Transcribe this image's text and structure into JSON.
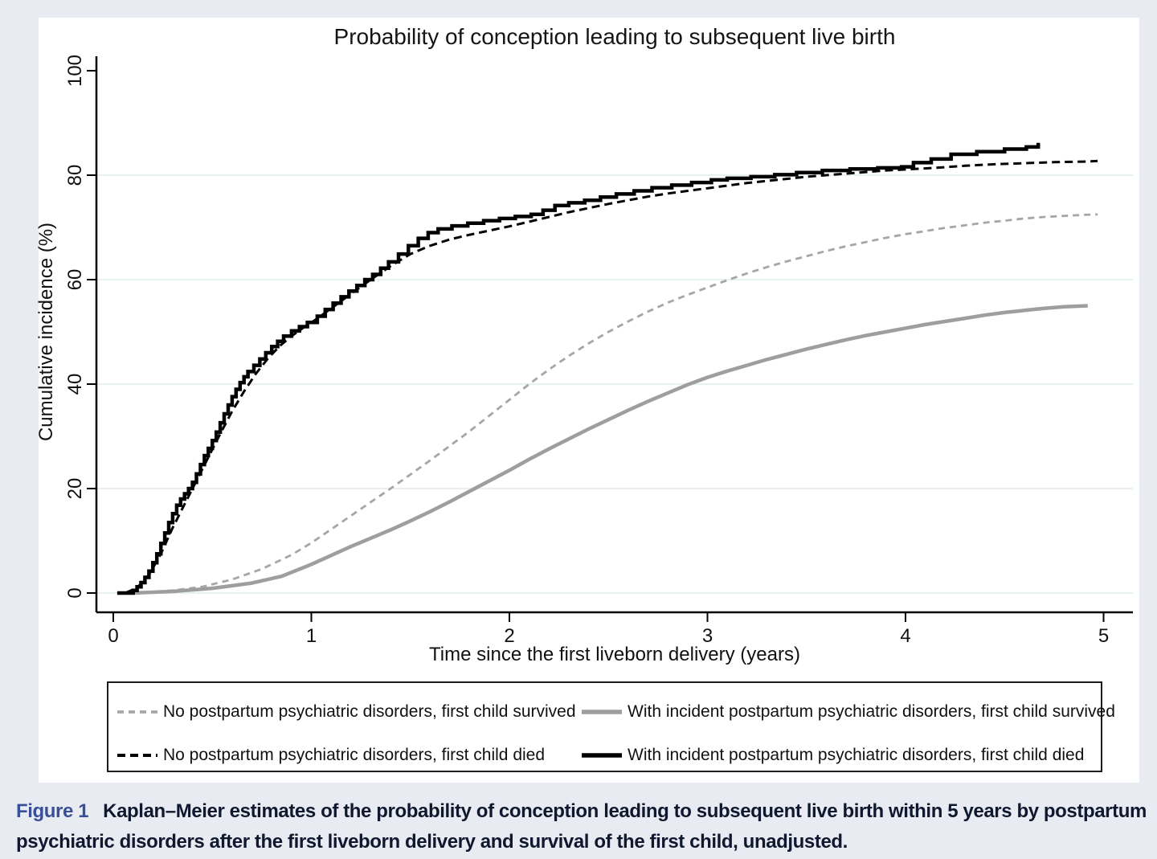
{
  "page": {
    "background": "#e8ecf2",
    "panel": "#ffffff"
  },
  "colors": {
    "axis": "#000000",
    "gridline": "#e9f1ee",
    "gray_series": "#9e9e9e",
    "gray_dashed_series": "#a6a6a6",
    "black_series": "#000000",
    "caption_label_blue": "#3a4f9a",
    "caption_text": "#10182f"
  },
  "chart_data": {
    "type": "line",
    "title": "Probability of conception leading to subsequent live birth",
    "xlabel": "Time since the first liveborn delivery (years)",
    "ylabel": "Cumulative incidence (%)",
    "xlim": [
      0,
      5
    ],
    "ylim": [
      0,
      100
    ],
    "xticks": [
      0,
      1,
      2,
      3,
      4,
      5
    ],
    "yticks": [
      0,
      20,
      40,
      60,
      80,
      100
    ],
    "gridlines_y": [
      0,
      20,
      40,
      60,
      80
    ],
    "grid": "horizontal-only",
    "legend_position": "boxed, below plot, 2 columns x 2 rows",
    "series": [
      {
        "name": "No postpartum psychiatric disorders, first child survived",
        "color": "#a6a6a6",
        "style": "dashed",
        "dash": "8 6",
        "line_width": 2.8,
        "interpolation": "linear",
        "points": [
          [
            0.1,
            0
          ],
          [
            0.3,
            0.5
          ],
          [
            0.45,
            1.2
          ],
          [
            0.6,
            2.6
          ],
          [
            0.75,
            4.6
          ],
          [
            0.9,
            7.3
          ],
          [
            1.0,
            9.6
          ],
          [
            1.1,
            12.2
          ],
          [
            1.2,
            14.8
          ],
          [
            1.3,
            17.4
          ],
          [
            1.4,
            20
          ],
          [
            1.5,
            22.7
          ],
          [
            1.6,
            25.4
          ],
          [
            1.7,
            28.2
          ],
          [
            1.8,
            31
          ],
          [
            1.9,
            34
          ],
          [
            2.0,
            37
          ],
          [
            2.1,
            40
          ],
          [
            2.2,
            42.8
          ],
          [
            2.3,
            45.4
          ],
          [
            2.4,
            47.8
          ],
          [
            2.5,
            50
          ],
          [
            2.6,
            52
          ],
          [
            2.7,
            53.9
          ],
          [
            2.8,
            55.6
          ],
          [
            2.9,
            57.1
          ],
          [
            3.0,
            58.5
          ],
          [
            3.1,
            59.9
          ],
          [
            3.2,
            61.2
          ],
          [
            3.3,
            62.4
          ],
          [
            3.4,
            63.5
          ],
          [
            3.5,
            64.5
          ],
          [
            3.6,
            65.5
          ],
          [
            3.7,
            66.4
          ],
          [
            3.8,
            67.2
          ],
          [
            3.9,
            68
          ],
          [
            4.0,
            68.7
          ],
          [
            4.1,
            69.3
          ],
          [
            4.2,
            69.9
          ],
          [
            4.3,
            70.4
          ],
          [
            4.4,
            70.9
          ],
          [
            4.5,
            71.3
          ],
          [
            4.6,
            71.7
          ],
          [
            4.7,
            72
          ],
          [
            4.8,
            72.2
          ],
          [
            4.9,
            72.4
          ],
          [
            4.97,
            72.5
          ]
        ]
      },
      {
        "name": "With incident postpartum psychiatric disorders, first child survived",
        "color": "#9e9e9e",
        "style": "solid",
        "dash": null,
        "line_width": 4.5,
        "interpolation": "linear",
        "points": [
          [
            0.1,
            0
          ],
          [
            0.3,
            0.3
          ],
          [
            0.5,
            0.9
          ],
          [
            0.7,
            1.9
          ],
          [
            0.85,
            3.2
          ],
          [
            1.0,
            5.5
          ],
          [
            1.1,
            7.2
          ],
          [
            1.2,
            8.9
          ],
          [
            1.3,
            10.5
          ],
          [
            1.4,
            12.1
          ],
          [
            1.5,
            13.8
          ],
          [
            1.6,
            15.6
          ],
          [
            1.7,
            17.5
          ],
          [
            1.8,
            19.5
          ],
          [
            1.9,
            21.5
          ],
          [
            2.0,
            23.5
          ],
          [
            2.1,
            25.6
          ],
          [
            2.2,
            27.6
          ],
          [
            2.3,
            29.5
          ],
          [
            2.4,
            31.4
          ],
          [
            2.5,
            33.2
          ],
          [
            2.6,
            35
          ],
          [
            2.7,
            36.7
          ],
          [
            2.8,
            38.3
          ],
          [
            2.9,
            39.9
          ],
          [
            3.0,
            41.3
          ],
          [
            3.1,
            42.5
          ],
          [
            3.2,
            43.6
          ],
          [
            3.3,
            44.7
          ],
          [
            3.4,
            45.7
          ],
          [
            3.5,
            46.7
          ],
          [
            3.6,
            47.6
          ],
          [
            3.7,
            48.5
          ],
          [
            3.8,
            49.3
          ],
          [
            3.9,
            50
          ],
          [
            4.0,
            50.7
          ],
          [
            4.1,
            51.4
          ],
          [
            4.2,
            52
          ],
          [
            4.3,
            52.6
          ],
          [
            4.4,
            53.2
          ],
          [
            4.5,
            53.7
          ],
          [
            4.6,
            54.1
          ],
          [
            4.7,
            54.5
          ],
          [
            4.8,
            54.8
          ],
          [
            4.92,
            55
          ]
        ]
      },
      {
        "name": "No postpartum psychiatric disorders, first child died",
        "color": "#000000",
        "style": "dashed",
        "dash": "10 6",
        "line_width": 3,
        "interpolation": "linear",
        "points": [
          [
            0.06,
            0
          ],
          [
            0.12,
            1
          ],
          [
            0.18,
            3.5
          ],
          [
            0.24,
            7.5
          ],
          [
            0.3,
            12.5
          ],
          [
            0.36,
            17
          ],
          [
            0.42,
            21.5
          ],
          [
            0.48,
            26
          ],
          [
            0.54,
            30.5
          ],
          [
            0.6,
            34.8
          ],
          [
            0.66,
            38.6
          ],
          [
            0.72,
            42
          ],
          [
            0.78,
            44.9
          ],
          [
            0.84,
            47.3
          ],
          [
            0.9,
            49.2
          ],
          [
            0.96,
            50.8
          ],
          [
            1.02,
            52.3
          ],
          [
            1.1,
            54.5
          ],
          [
            1.2,
            57.3
          ],
          [
            1.3,
            60
          ],
          [
            1.4,
            62.6
          ],
          [
            1.5,
            64.9
          ],
          [
            1.6,
            66.5
          ],
          [
            1.7,
            67.7
          ],
          [
            1.8,
            68.6
          ],
          [
            1.9,
            69.4
          ],
          [
            2.0,
            70.2
          ],
          [
            2.1,
            71.1
          ],
          [
            2.2,
            72
          ],
          [
            2.3,
            72.9
          ],
          [
            2.4,
            73.7
          ],
          [
            2.5,
            74.5
          ],
          [
            2.6,
            75.2
          ],
          [
            2.7,
            75.9
          ],
          [
            2.8,
            76.5
          ],
          [
            2.9,
            77
          ],
          [
            3.0,
            77.5
          ],
          [
            3.1,
            78
          ],
          [
            3.2,
            78.5
          ],
          [
            3.3,
            78.9
          ],
          [
            3.4,
            79.3
          ],
          [
            3.5,
            79.7
          ],
          [
            3.6,
            80
          ],
          [
            3.7,
            80.3
          ],
          [
            3.8,
            80.6
          ],
          [
            3.9,
            80.9
          ],
          [
            4.0,
            81.1
          ],
          [
            4.15,
            81.4
          ],
          [
            4.3,
            81.8
          ],
          [
            4.45,
            82.1
          ],
          [
            4.6,
            82.3
          ],
          [
            4.75,
            82.5
          ],
          [
            4.9,
            82.6
          ],
          [
            4.97,
            82.7
          ]
        ]
      },
      {
        "name": "With incident postpartum psychiatric disorders, first child died",
        "color": "#000000",
        "style": "solid",
        "dash": null,
        "line_width": 4.5,
        "interpolation": "step",
        "points": [
          [
            0.02,
            0
          ],
          [
            0.1,
            0.5
          ],
          [
            0.12,
            1.2
          ],
          [
            0.14,
            2
          ],
          [
            0.16,
            3
          ],
          [
            0.18,
            4.2
          ],
          [
            0.2,
            5.8
          ],
          [
            0.22,
            7.5
          ],
          [
            0.24,
            9.5
          ],
          [
            0.26,
            11.5
          ],
          [
            0.28,
            13.5
          ],
          [
            0.3,
            15.2
          ],
          [
            0.32,
            16.8
          ],
          [
            0.34,
            18
          ],
          [
            0.36,
            19
          ],
          [
            0.38,
            20
          ],
          [
            0.4,
            21.2
          ],
          [
            0.42,
            22.8
          ],
          [
            0.44,
            24.6
          ],
          [
            0.46,
            26.3
          ],
          [
            0.48,
            27.7
          ],
          [
            0.5,
            29.2
          ],
          [
            0.52,
            30.8
          ],
          [
            0.54,
            32.6
          ],
          [
            0.56,
            34.3
          ],
          [
            0.58,
            36
          ],
          [
            0.6,
            37.6
          ],
          [
            0.62,
            39
          ],
          [
            0.64,
            40.3
          ],
          [
            0.66,
            41.4
          ],
          [
            0.68,
            42.4
          ],
          [
            0.71,
            43.6
          ],
          [
            0.74,
            44.8
          ],
          [
            0.77,
            46
          ],
          [
            0.8,
            47.2
          ],
          [
            0.83,
            48.2
          ],
          [
            0.86,
            49.2
          ],
          [
            0.9,
            50.2
          ],
          [
            0.94,
            51
          ],
          [
            0.98,
            51.8
          ],
          [
            1.03,
            53
          ],
          [
            1.07,
            54.3
          ],
          [
            1.11,
            55.5
          ],
          [
            1.15,
            56.7
          ],
          [
            1.19,
            57.8
          ],
          [
            1.23,
            58.9
          ],
          [
            1.27,
            60
          ],
          [
            1.31,
            61
          ],
          [
            1.35,
            62.2
          ],
          [
            1.39,
            63.4
          ],
          [
            1.44,
            64.9
          ],
          [
            1.49,
            66.5
          ],
          [
            1.54,
            67.9
          ],
          [
            1.59,
            69
          ],
          [
            1.64,
            69.7
          ],
          [
            1.71,
            70.3
          ],
          [
            1.79,
            70.8
          ],
          [
            1.87,
            71.3
          ],
          [
            1.95,
            71.7
          ],
          [
            2.03,
            72.1
          ],
          [
            2.11,
            72.5
          ],
          [
            2.17,
            73.3
          ],
          [
            2.23,
            74.2
          ],
          [
            2.3,
            74.7
          ],
          [
            2.38,
            75.2
          ],
          [
            2.46,
            75.8
          ],
          [
            2.54,
            76.4
          ],
          [
            2.63,
            77
          ],
          [
            2.72,
            77.6
          ],
          [
            2.82,
            78.1
          ],
          [
            2.92,
            78.6
          ],
          [
            3.02,
            79.1
          ],
          [
            3.1,
            79.4
          ],
          [
            3.22,
            79.7
          ],
          [
            3.34,
            80.1
          ],
          [
            3.45,
            80.5
          ],
          [
            3.58,
            80.9
          ],
          [
            3.72,
            81.2
          ],
          [
            3.86,
            81.4
          ],
          [
            3.98,
            81.6
          ],
          [
            4.04,
            82.4
          ],
          [
            4.13,
            83.1
          ],
          [
            4.23,
            84
          ],
          [
            4.36,
            84.5
          ],
          [
            4.5,
            85
          ],
          [
            4.61,
            85.4
          ],
          [
            4.67,
            86.2
          ]
        ]
      }
    ]
  },
  "caption": {
    "label": "Figure 1",
    "line1": "Kaplan–Meier estimates of the probability of conception leading to subsequent live birth within 5 years by postpartum",
    "line2": "psychiatric disorders after the first liveborn delivery and survival of the first child, unadjusted."
  }
}
